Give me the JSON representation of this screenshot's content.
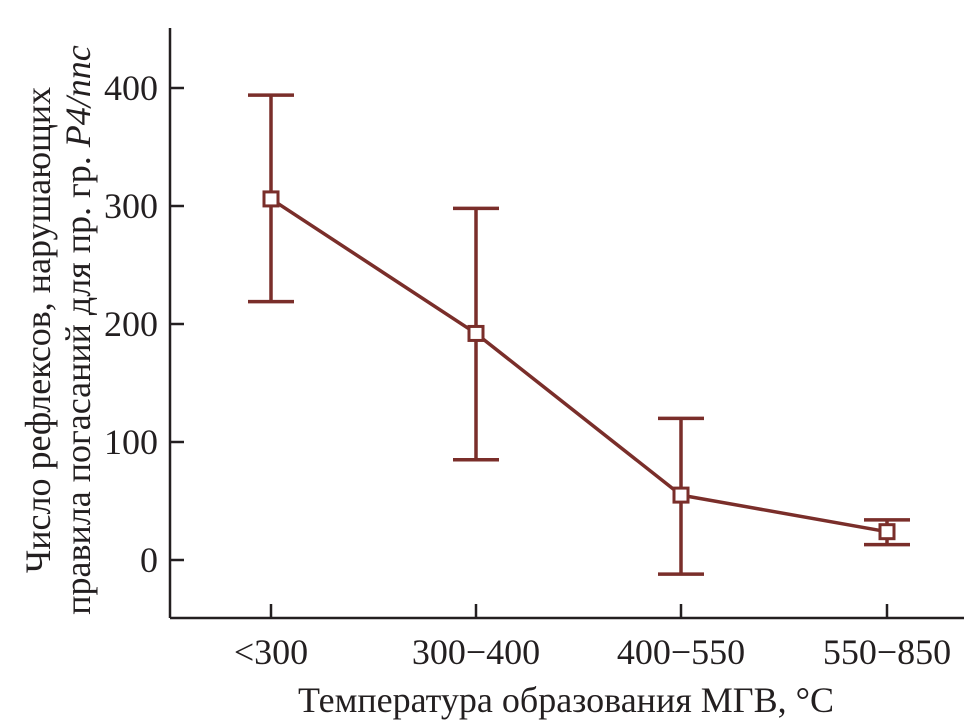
{
  "colors": {
    "series": "#7a2e2a",
    "axis": "#231f20",
    "marker_fill": "#ffffff"
  },
  "chart_data": {
    "type": "line",
    "categories": [
      "<300",
      "300−400",
      "400−550",
      "550−850"
    ],
    "series": [
      {
        "values": [
          306,
          192,
          55,
          24
        ],
        "error_low": [
          219,
          85,
          -12,
          13
        ],
        "error_high": [
          394,
          298,
          120,
          34
        ],
        "marker": "open-square"
      }
    ],
    "xlabel": "Температура образования МГВ, °C",
    "ylabel": {
      "line1": "Число рефлексов, нарушающих",
      "line2_prefix": "правила погасаний для пр. гр. ",
      "line2_italic": "P4/nnc"
    },
    "ylim": [
      -50,
      450
    ],
    "yticks": [
      0,
      100,
      200,
      300,
      400
    ],
    "grid": false,
    "legend": "none"
  }
}
